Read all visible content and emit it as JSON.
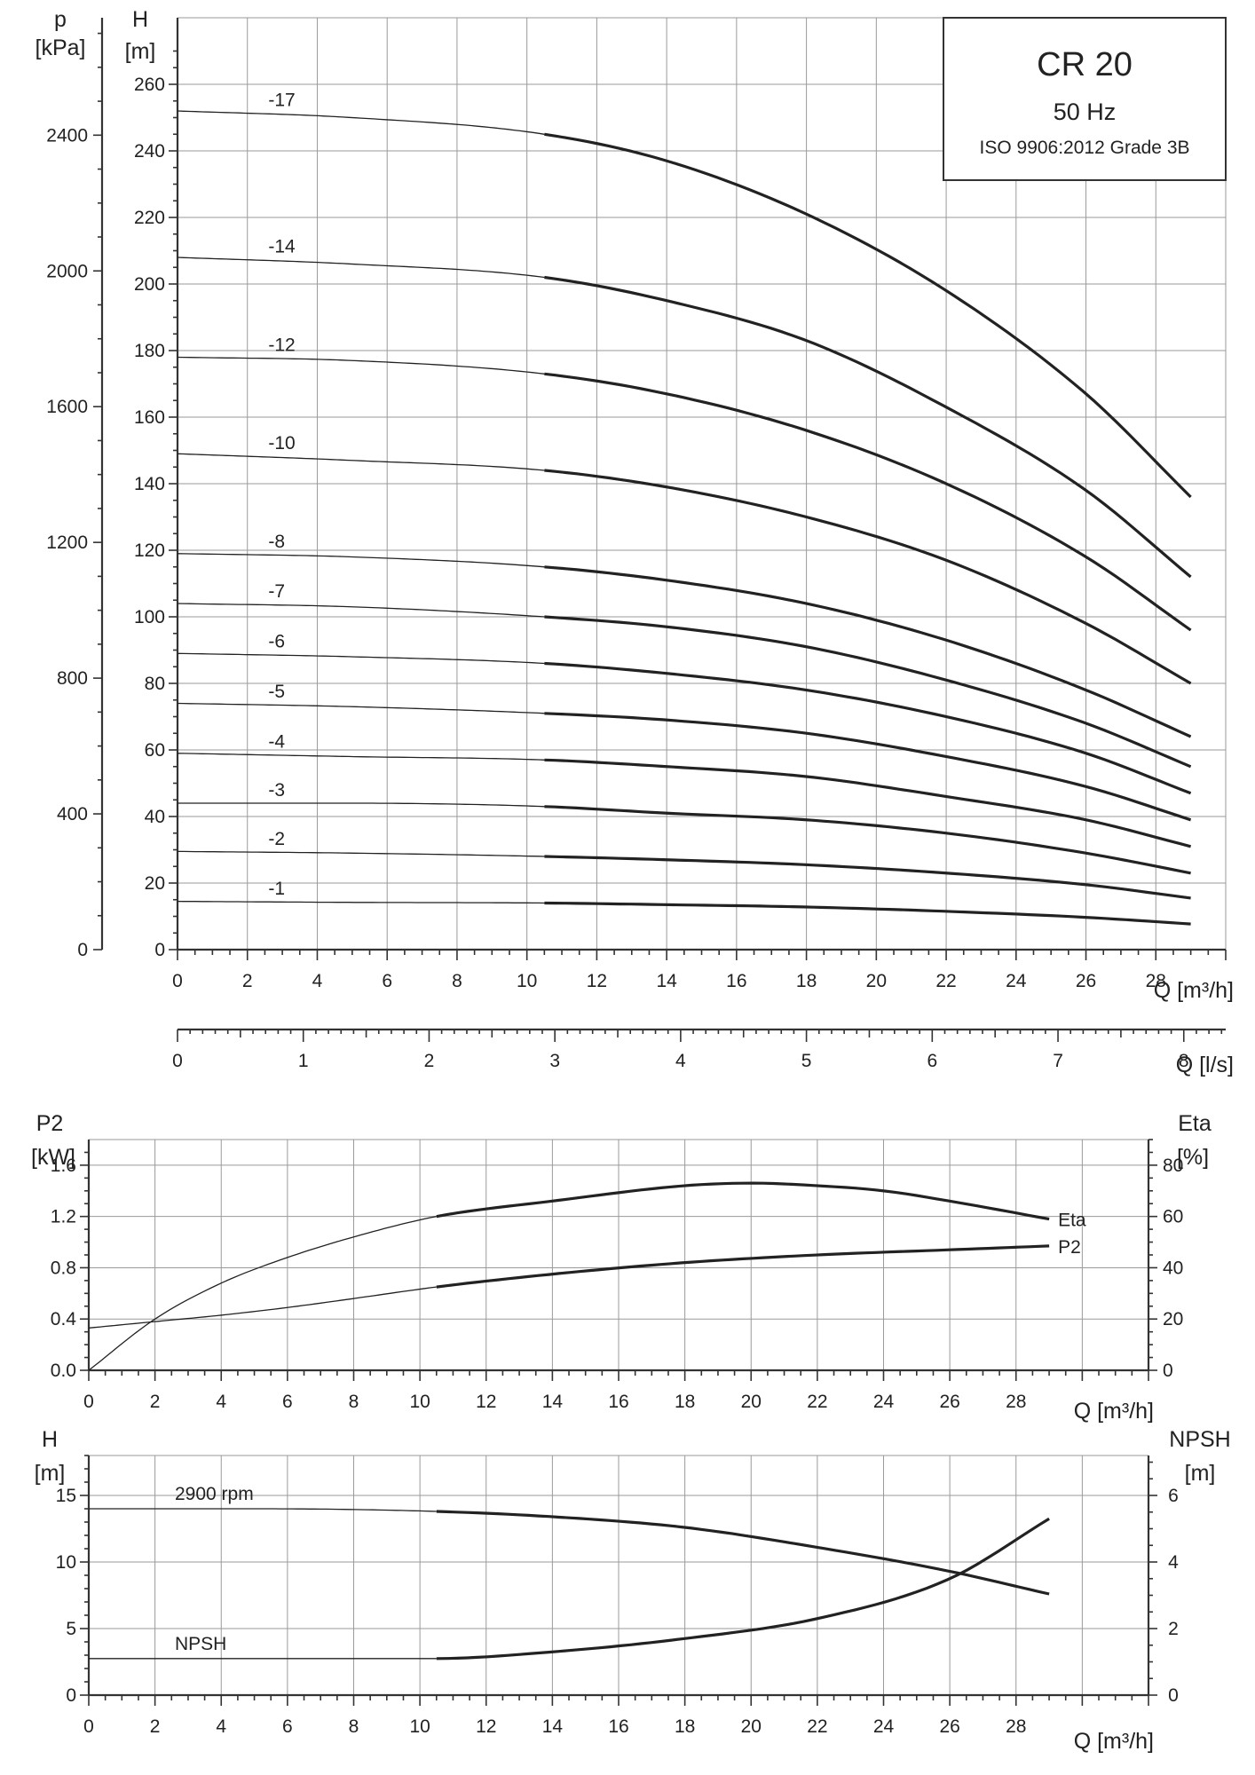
{
  "chart_data": [
    {
      "type": "line",
      "title": "CR 20",
      "subtitle_freq": "50 Hz",
      "subtitle_standard": "ISO 9906:2012 Grade 3B",
      "xlabel": "Q [m³/h]",
      "xlabel2": "Q [l/s]",
      "ylabel_left_outer": "p",
      "ylabel_left_outer_unit": "[kPa]",
      "ylabel": "H",
      "ylabel_unit": "[m]",
      "xlim": [
        0,
        30
      ],
      "ylim": [
        0,
        280
      ],
      "x2lim": [
        0,
        8.33
      ],
      "p_ylim": [
        0,
        2746
      ],
      "x_ticks": [
        "0",
        "2",
        "4",
        "6",
        "8",
        "10",
        "12",
        "14",
        "16",
        "18",
        "20",
        "22",
        "24",
        "26",
        "28"
      ],
      "y_ticks": [
        "0",
        "20",
        "40",
        "60",
        "80",
        "100",
        "120",
        "140",
        "160",
        "180",
        "200",
        "220",
        "240",
        "260"
      ],
      "p_ticks": [
        "0",
        "400",
        "800",
        "1200",
        "1600",
        "2000",
        "2400"
      ],
      "x2_ticks": [
        "0",
        "1",
        "2",
        "3",
        "4",
        "5",
        "6",
        "7",
        "8"
      ],
      "thin_to_thick_x": 10.5,
      "grid": true,
      "series": [
        {
          "name": "-17",
          "x": [
            0,
            5,
            10.5,
            14,
            18,
            22,
            26,
            29
          ],
          "y": [
            252,
            250,
            245,
            237,
            221,
            198,
            167,
            136
          ]
        },
        {
          "name": "-14",
          "x": [
            0,
            5,
            10.5,
            14,
            18,
            22,
            26,
            29
          ],
          "y": [
            208,
            206,
            202,
            195,
            183,
            163,
            138,
            112
          ]
        },
        {
          "name": "-12",
          "x": [
            0,
            5,
            10.5,
            14,
            18,
            22,
            26,
            29
          ],
          "y": [
            178,
            177,
            173,
            167,
            156,
            140,
            118,
            96
          ]
        },
        {
          "name": "-10",
          "x": [
            0,
            5,
            10.5,
            14,
            18,
            22,
            26,
            29
          ],
          "y": [
            149,
            147,
            144,
            139,
            130,
            117,
            98,
            80
          ]
        },
        {
          "name": "-8",
          "x": [
            0,
            5,
            10.5,
            14,
            18,
            22,
            26,
            29
          ],
          "y": [
            119,
            118,
            115,
            111,
            104,
            93,
            78,
            64
          ]
        },
        {
          "name": "-7",
          "x": [
            0,
            5,
            10.5,
            14,
            18,
            22,
            26,
            29
          ],
          "y": [
            104,
            103,
            100,
            97,
            91,
            81,
            68,
            55
          ]
        },
        {
          "name": "-6",
          "x": [
            0,
            5,
            10.5,
            14,
            18,
            22,
            26,
            29
          ],
          "y": [
            89,
            88,
            86,
            83,
            78,
            70,
            59,
            47
          ]
        },
        {
          "name": "-5",
          "x": [
            0,
            5,
            10.5,
            14,
            18,
            22,
            26,
            29
          ],
          "y": [
            74,
            73,
            71,
            69,
            65,
            58,
            49,
            39
          ]
        },
        {
          "name": "-4",
          "x": [
            0,
            5,
            10.5,
            14,
            18,
            22,
            26,
            29
          ],
          "y": [
            59,
            58,
            57,
            55,
            52,
            46,
            39,
            31
          ]
        },
        {
          "name": "-3",
          "x": [
            0,
            5,
            10.5,
            14,
            18,
            22,
            26,
            29
          ],
          "y": [
            44,
            44,
            43,
            41,
            39,
            35,
            29,
            23
          ]
        },
        {
          "name": "-2",
          "x": [
            0,
            5,
            10.5,
            14,
            18,
            22,
            26,
            29
          ],
          "y": [
            29.5,
            29,
            28,
            27,
            25.5,
            23,
            19.5,
            15.5
          ]
        },
        {
          "name": "-1",
          "x": [
            0,
            5,
            10.5,
            14,
            18,
            22,
            26,
            29
          ],
          "y": [
            14.5,
            14.2,
            14,
            13.5,
            12.8,
            11.5,
            9.7,
            7.7
          ]
        }
      ]
    },
    {
      "type": "line",
      "xlabel": "Q [m³/h]",
      "ylabel_left": "P2",
      "ylabel_left_unit": "[kW]",
      "ylabel_right": "Eta",
      "ylabel_right_unit": "[%]",
      "xlim": [
        0,
        32
      ],
      "ylim_left": [
        0,
        1.8
      ],
      "ylim_right": [
        0,
        90
      ],
      "x_ticks": [
        "0",
        "2",
        "4",
        "6",
        "8",
        "10",
        "12",
        "14",
        "16",
        "18",
        "20",
        "22",
        "24",
        "26",
        "28"
      ],
      "y_left_ticks": [
        "0.0",
        "0.4",
        "0.8",
        "1.2",
        "1.6"
      ],
      "y_right_ticks": [
        "0",
        "20",
        "40",
        "60",
        "80"
      ],
      "thin_to_thick_x": 10.5,
      "grid": true,
      "series": [
        {
          "name": "Eta",
          "axis": "right",
          "x": [
            0,
            2,
            4,
            6,
            8,
            10.5,
            14,
            18,
            20,
            22,
            24,
            26,
            29
          ],
          "y": [
            0,
            20,
            34,
            44,
            52,
            60,
            66,
            72,
            73,
            72,
            70,
            66,
            59
          ]
        },
        {
          "name": "P2",
          "axis": "left",
          "x": [
            0,
            2,
            4,
            6,
            8,
            10.5,
            14,
            18,
            22,
            26,
            29
          ],
          "y": [
            0.33,
            0.38,
            0.43,
            0.49,
            0.56,
            0.65,
            0.75,
            0.84,
            0.9,
            0.94,
            0.97
          ]
        }
      ]
    },
    {
      "type": "line",
      "xlabel": "Q [m³/h]",
      "ylabel_left": "H",
      "ylabel_left_unit": "[m]",
      "ylabel_right": "NPSH",
      "ylabel_right_unit": "[m]",
      "xlim": [
        0,
        32
      ],
      "ylim_left": [
        0,
        18
      ],
      "ylim_right": [
        0,
        7.2
      ],
      "x_ticks": [
        "0",
        "2",
        "4",
        "6",
        "8",
        "10",
        "12",
        "14",
        "16",
        "18",
        "20",
        "22",
        "24",
        "26",
        "28"
      ],
      "y_left_ticks": [
        "0",
        "5",
        "10",
        "15"
      ],
      "y_right_ticks": [
        "0",
        "2",
        "4",
        "6"
      ],
      "thin_to_thick_x": 10.5,
      "grid": true,
      "series": [
        {
          "name": "2900 rpm",
          "axis": "left",
          "x": [
            0,
            5,
            10.5,
            14,
            18,
            22,
            26,
            29
          ],
          "y": [
            14,
            14,
            13.8,
            13.4,
            12.6,
            11.1,
            9.3,
            7.6
          ]
        },
        {
          "name": "NPSH",
          "axis": "right",
          "x": [
            0,
            5,
            10.5,
            14,
            18,
            22,
            26,
            29
          ],
          "y": [
            1.1,
            1.1,
            1.1,
            1.3,
            1.7,
            2.3,
            3.5,
            5.3
          ]
        }
      ]
    }
  ]
}
